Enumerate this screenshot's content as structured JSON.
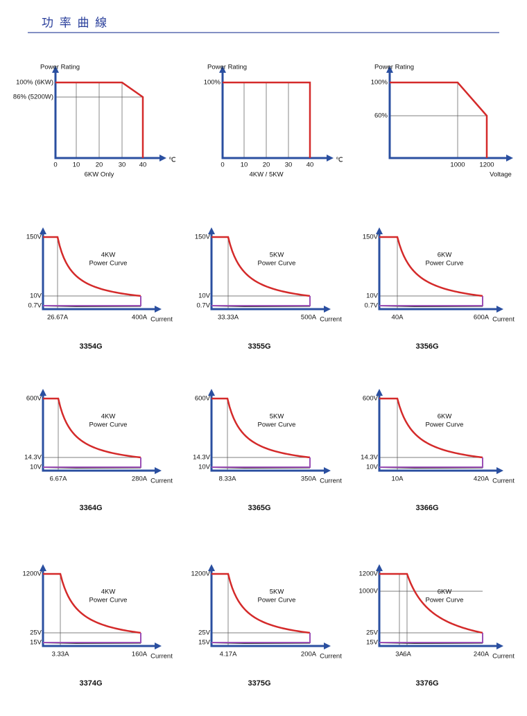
{
  "header": {
    "title": "功 率 曲 線"
  },
  "derating": [
    {
      "y_label": "Power Rating",
      "y_ticks": [
        "100% (6KW)",
        "86% (5200W)"
      ],
      "x_ticks": [
        "0",
        "10",
        "20",
        "30",
        "40"
      ],
      "x_unit": "℃",
      "x_caption": "6KW Only"
    },
    {
      "y_label": "Power Rating",
      "y_ticks": [
        "100%"
      ],
      "x_ticks": [
        "0",
        "10",
        "20",
        "30",
        "40"
      ],
      "x_unit": "℃",
      "x_caption": "4KW / 5KW"
    },
    {
      "y_label": "Power Rating",
      "y_ticks": [
        "100%",
        "60%"
      ],
      "x_ticks": [
        "1000",
        "1200"
      ],
      "x_unit": "Voltage"
    }
  ],
  "power_curves": [
    {
      "model": "3354G",
      "rating": "4KW",
      "curve_label": "Power Curve",
      "v_ticks": [
        "150V",
        "10V",
        "0.7V"
      ],
      "a_ticks": [
        "26.67A",
        "400A"
      ],
      "x_unit": "Current"
    },
    {
      "model": "3355G",
      "rating": "5KW",
      "curve_label": "Power Curve",
      "v_ticks": [
        "150V",
        "10V",
        "0.7V"
      ],
      "a_ticks": [
        "33.33A",
        "500A"
      ],
      "x_unit": "Current"
    },
    {
      "model": "3356G",
      "rating": "6KW",
      "curve_label": "Power Curve",
      "v_ticks": [
        "150V",
        "10V",
        "0.7V"
      ],
      "a_ticks": [
        "40A",
        "600A"
      ],
      "x_unit": "Current"
    },
    {
      "model": "3364G",
      "rating": "4KW",
      "curve_label": "Power Curve",
      "v_ticks": [
        "600V",
        "14.3V",
        "10V"
      ],
      "a_ticks": [
        "6.67A",
        "280A"
      ],
      "x_unit": "Current"
    },
    {
      "model": "3365G",
      "rating": "5KW",
      "curve_label": "Power Curve",
      "v_ticks": [
        "600V",
        "14.3V",
        "10V"
      ],
      "a_ticks": [
        "8.33A",
        "350A"
      ],
      "x_unit": "Current"
    },
    {
      "model": "3366G",
      "rating": "6KW",
      "curve_label": "Power Curve",
      "v_ticks": [
        "600V",
        "14.3V",
        "10V"
      ],
      "a_ticks": [
        "10A",
        "420A"
      ],
      "x_unit": "Current"
    },
    {
      "model": "3374G",
      "rating": "4KW",
      "curve_label": "Power Curve",
      "v_ticks": [
        "1200V",
        "25V",
        "15V"
      ],
      "a_ticks": [
        "3.33A",
        "160A"
      ],
      "x_unit": "Current"
    },
    {
      "model": "3375G",
      "rating": "5KW",
      "curve_label": "Power Curve",
      "v_ticks": [
        "1200V",
        "25V",
        "15V"
      ],
      "a_ticks": [
        "4.17A",
        "200A"
      ],
      "x_unit": "Current"
    },
    {
      "model": "3376G",
      "rating": "6KW",
      "curve_label": "Power Curve",
      "v_ticks": [
        "1200V",
        "1000V",
        "25V",
        "15V"
      ],
      "a_ticks": [
        "3A",
        "6A",
        "240A"
      ],
      "x_unit": "Current"
    }
  ]
}
